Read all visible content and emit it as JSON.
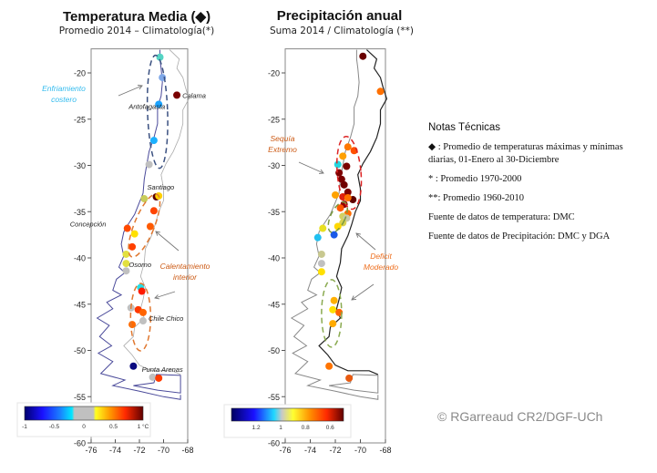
{
  "left_panel": {
    "title": "Temperatura Media (◆)",
    "subtitle": "Promedio 2014 – Climatología(*)",
    "x_ticks": [
      "-76",
      "-74",
      "-72",
      "-70",
      "-68"
    ],
    "y_ticks": [
      "-20",
      "-25",
      "-30",
      "-35",
      "-40",
      "-45",
      "-50",
      "-55",
      "-60"
    ],
    "colorbar": {
      "ticks": [
        "-1",
        "-0.5",
        "0",
        "0.5",
        "1 °C"
      ],
      "range": [
        -1,
        1
      ],
      "unit": "°C"
    },
    "cities": [
      {
        "name": "Antofagasta",
        "lat": -23.6,
        "lon": -70.4
      },
      {
        "name": "Calama",
        "lat": -22.4,
        "lon": -68.9
      },
      {
        "name": "Santiago",
        "lat": -33.4,
        "lon": -70.6
      },
      {
        "name": "Concepción",
        "lat": -36.8,
        "lon": -73.0
      },
      {
        "name": "Osorno",
        "lat": -40.6,
        "lon": -73.1
      },
      {
        "name": "Chile Chico",
        "lat": -46.5,
        "lon": -71.7
      },
      {
        "name": "Punta Arenas",
        "lat": -53.1,
        "lon": -70.9
      }
    ],
    "annotations": [
      {
        "text": "Enfriamiento\ncostero",
        "color": "#33bbee"
      },
      {
        "text": "Calentamiento\ninterior",
        "color": "#cc5a14"
      }
    ],
    "stations": [
      {
        "lat": -18.3,
        "lon": -70.3,
        "value": -0.4,
        "color": "#55d4c4"
      },
      {
        "lat": -20.5,
        "lon": -70.1,
        "value": -0.6,
        "color": "#7fa8e8"
      },
      {
        "lat": -22.4,
        "lon": -68.9,
        "value": 1.0,
        "color": "#7a0000"
      },
      {
        "lat": -23.4,
        "lon": -70.4,
        "value": -0.55,
        "color": "#1aa3ff"
      },
      {
        "lat": -27.3,
        "lon": -70.8,
        "value": -0.6,
        "color": "#1ab0ff"
      },
      {
        "lat": -29.9,
        "lon": -71.2,
        "value": 0.0,
        "color": "#c0c0c0"
      },
      {
        "lat": -33.4,
        "lon": -70.6,
        "value": 1.0,
        "color": "#5a0000"
      },
      {
        "lat": -33.3,
        "lon": -70.4,
        "value": 0.4,
        "color": "#ffd000"
      },
      {
        "lat": -33.6,
        "lon": -71.6,
        "value": 0.2,
        "color": "#c8cc5a"
      },
      {
        "lat": -34.9,
        "lon": -70.8,
        "value": 0.7,
        "color": "#ff4400"
      },
      {
        "lat": -36.6,
        "lon": -71.1,
        "value": 0.65,
        "color": "#ff5a00"
      },
      {
        "lat": -36.8,
        "lon": -73.0,
        "value": 0.7,
        "color": "#ff4a00"
      },
      {
        "lat": -37.4,
        "lon": -72.4,
        "value": 0.3,
        "color": "#ffe000"
      },
      {
        "lat": -38.8,
        "lon": -72.6,
        "value": 0.7,
        "color": "#ff4000"
      },
      {
        "lat": -39.6,
        "lon": -73.1,
        "value": 0.2,
        "color": "#e2e040"
      },
      {
        "lat": -40.6,
        "lon": -73.1,
        "value": 0.2,
        "color": "#e2e040"
      },
      {
        "lat": -41.4,
        "lon": -73.1,
        "value": 0.0,
        "color": "#c0c0c0"
      },
      {
        "lat": -43.2,
        "lon": -71.9,
        "value": -0.4,
        "color": "#22e0e8"
      },
      {
        "lat": -43.6,
        "lon": -71.8,
        "value": 0.8,
        "color": "#ff1a00"
      },
      {
        "lat": -45.4,
        "lon": -72.7,
        "value": 0.0,
        "color": "#c0c0c0"
      },
      {
        "lat": -45.6,
        "lon": -72.1,
        "value": 0.7,
        "color": "#ff3800"
      },
      {
        "lat": -45.9,
        "lon": -71.7,
        "value": 0.6,
        "color": "#ff6400"
      },
      {
        "lat": -46.8,
        "lon": -71.7,
        "value": 0.0,
        "color": "#c0c0c0"
      },
      {
        "lat": -47.2,
        "lon": -72.6,
        "value": 0.6,
        "color": "#ff6a00"
      },
      {
        "lat": -51.7,
        "lon": -72.5,
        "value": -1.0,
        "color": "#0a0a80"
      },
      {
        "lat": -52.9,
        "lon": -70.9,
        "value": 0.0,
        "color": "#c0c0c0"
      },
      {
        "lat": -53.0,
        "lon": -70.4,
        "value": 0.7,
        "color": "#ff3c00"
      }
    ]
  },
  "right_panel": {
    "title": "Precipitación anual",
    "subtitle": "Suma 2014 / Climatología (**)",
    "x_ticks": [
      "-76",
      "-74",
      "-72",
      "-70",
      "-68"
    ],
    "y_ticks": [
      "-20",
      "-25",
      "-30",
      "-35",
      "-40",
      "-45",
      "-50",
      "-55",
      "-60"
    ],
    "colorbar": {
      "ticks": [
        "1.2",
        "1",
        "0.8",
        "0.6"
      ],
      "range": [
        1.4,
        0.5
      ]
    },
    "annotations": [
      {
        "text": "Sequía\nExtremo",
        "color": "#cc5a14"
      },
      {
        "text": "Deficit\nModerado",
        "color": "#ee7020"
      }
    ],
    "stations": [
      {
        "lat": -18.2,
        "lon": -69.8,
        "value": 0.5,
        "color": "#6a0000"
      },
      {
        "lat": -22.0,
        "lon": -68.4,
        "value": 0.75,
        "color": "#ff7000"
      },
      {
        "lat": -28.0,
        "lon": -71.0,
        "value": 0.75,
        "color": "#ff7800"
      },
      {
        "lat": -28.4,
        "lon": -70.5,
        "value": 0.7,
        "color": "#ff5000"
      },
      {
        "lat": -29.0,
        "lon": -71.4,
        "value": 0.8,
        "color": "#ffa000"
      },
      {
        "lat": -29.9,
        "lon": -71.8,
        "value": 1.05,
        "color": "#22d8e0"
      },
      {
        "lat": -30.1,
        "lon": -71.1,
        "value": 0.5,
        "color": "#7a0000"
      },
      {
        "lat": -30.8,
        "lon": -71.7,
        "value": 0.5,
        "color": "#800000"
      },
      {
        "lat": -31.5,
        "lon": -71.5,
        "value": 0.5,
        "color": "#7a0000"
      },
      {
        "lat": -32.1,
        "lon": -71.3,
        "value": 0.5,
        "color": "#700000"
      },
      {
        "lat": -32.9,
        "lon": -71.0,
        "value": 0.5,
        "color": "#800000"
      },
      {
        "lat": -33.2,
        "lon": -72.0,
        "value": 0.8,
        "color": "#ffa200"
      },
      {
        "lat": -33.4,
        "lon": -71.4,
        "value": 0.6,
        "color": "#e02000"
      },
      {
        "lat": -33.7,
        "lon": -70.6,
        "value": 0.5,
        "color": "#600000"
      },
      {
        "lat": -33.5,
        "lon": -71.0,
        "value": 0.75,
        "color": "#ff7000"
      },
      {
        "lat": -34.2,
        "lon": -71.3,
        "value": 0.55,
        "color": "#900000"
      },
      {
        "lat": -34.6,
        "lon": -71.6,
        "value": 0.7,
        "color": "#ff5800"
      },
      {
        "lat": -35.2,
        "lon": -71.0,
        "value": 0.75,
        "color": "#ff6c00"
      },
      {
        "lat": -35.5,
        "lon": -71.4,
        "value": 0.9,
        "color": "#d4d060"
      },
      {
        "lat": -35.7,
        "lon": -71.1,
        "value": 1.0,
        "color": "#c8c8a8"
      },
      {
        "lat": -36.2,
        "lon": -71.4,
        "value": 0.9,
        "color": "#d8d050"
      },
      {
        "lat": -36.6,
        "lon": -71.8,
        "value": 0.8,
        "color": "#ffd800"
      },
      {
        "lat": -36.8,
        "lon": -73.0,
        "value": 0.85,
        "color": "#e8e020"
      },
      {
        "lat": -37.5,
        "lon": -72.1,
        "value": 1.2,
        "color": "#1a5ae8"
      },
      {
        "lat": -37.8,
        "lon": -73.4,
        "value": 1.1,
        "color": "#20c0f0"
      },
      {
        "lat": -39.6,
        "lon": -73.1,
        "value": 0.95,
        "color": "#c8c890"
      },
      {
        "lat": -40.6,
        "lon": -73.1,
        "value": 1.0,
        "color": "#c0c0c0"
      },
      {
        "lat": -41.5,
        "lon": -73.1,
        "value": 0.85,
        "color": "#ffe000"
      },
      {
        "lat": -44.6,
        "lon": -72.1,
        "value": 0.8,
        "color": "#ffb000"
      },
      {
        "lat": -45.6,
        "lon": -72.2,
        "value": 0.85,
        "color": "#ffe000"
      },
      {
        "lat": -45.9,
        "lon": -71.7,
        "value": 0.7,
        "color": "#ff6400"
      },
      {
        "lat": -47.1,
        "lon": -72.2,
        "value": 0.8,
        "color": "#ffaa00"
      },
      {
        "lat": -51.7,
        "lon": -72.5,
        "value": 0.75,
        "color": "#ff7400"
      },
      {
        "lat": -53.0,
        "lon": -70.9,
        "value": 0.7,
        "color": "#e85a10"
      }
    ]
  },
  "notes": {
    "heading": "Notas Técnicas",
    "lines": [
      "◆ : Promedio de temperaturas máximas y mínimas diarias, 01-Enero al 30-Diciembre",
      "* : Promedio 1970-2000",
      "**: Promedio 1960-2010",
      "Fuente de datos de temperatura: DMC",
      "Fuente de datos de Precipitación: DMC y DGA"
    ]
  },
  "credit": "© RGarreaud CR2/DGF-UCh"
}
